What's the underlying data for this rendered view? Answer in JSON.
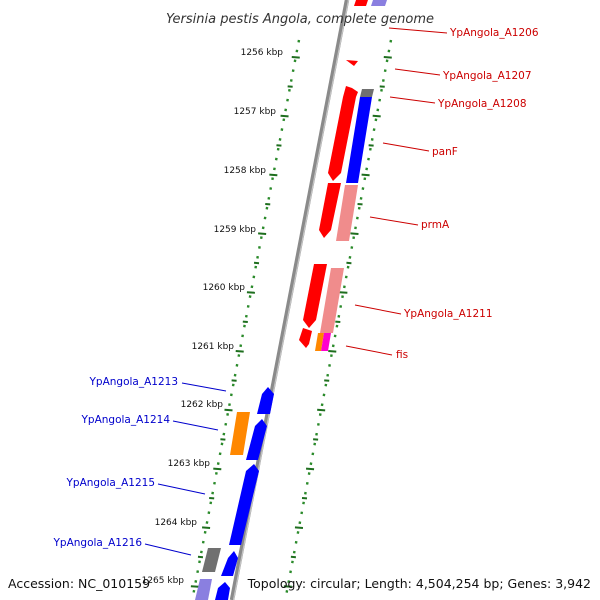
{
  "title": "Yersinia pestis Angola, complete genome",
  "footer": {
    "accession": "Accession: NC_010159",
    "topology": "Topology: circular; Length: 4,504,254 bp; Genes: 3,942"
  },
  "colors": {
    "forward_label": "#cc0000",
    "reverse_label": "#0000cc",
    "backbone": "#8a8a8a",
    "ruler_dots": "#2a8a2a",
    "ruler_ticks": "#1e6e1e"
  },
  "ruler": {
    "unit": "kbp",
    "ticks": [
      "1256 kbp",
      "1257 kbp",
      "1258 kbp",
      "1259 kbp",
      "1260 kbp",
      "1261 kbp",
      "1262 kbp",
      "1263 kbp",
      "1264 kbp",
      "1265 kbp"
    ]
  },
  "genes_forward": [
    {
      "label": "YpAngola_A1206"
    },
    {
      "label": "YpAngola_A1207"
    },
    {
      "label": "YpAngola_A1208"
    },
    {
      "label": "panF"
    },
    {
      "label": "prmA"
    },
    {
      "label": "YpAngola_A1211"
    },
    {
      "label": "fis"
    }
  ],
  "genes_reverse": [
    {
      "label": "YpAngola_A1213"
    },
    {
      "label": "YpAngola_A1214"
    },
    {
      "label": "YpAngola_A1215"
    },
    {
      "label": "YpAngola_A1216"
    }
  ]
}
